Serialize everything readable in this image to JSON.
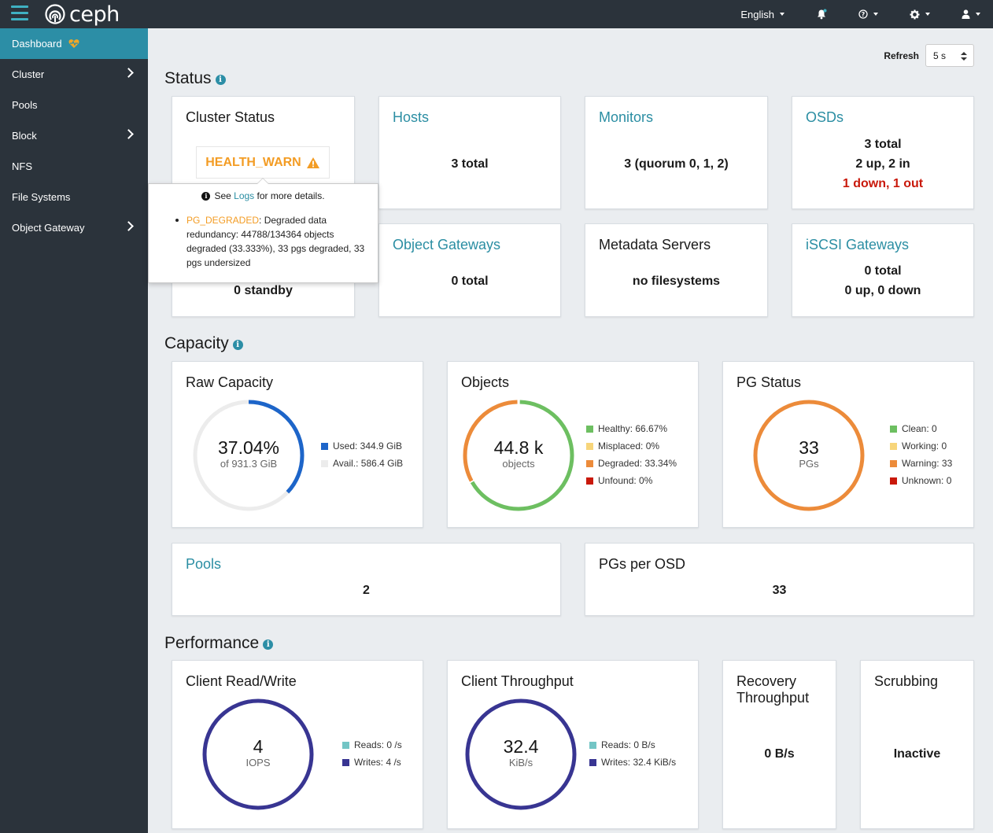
{
  "topbar": {
    "logo_text": "ceph",
    "language": "English"
  },
  "sidebar": {
    "items": [
      {
        "label": "Dashboard",
        "active": true
      },
      {
        "label": "Cluster",
        "has_submenu": true
      },
      {
        "label": "Pools"
      },
      {
        "label": "Block",
        "has_submenu": true
      },
      {
        "label": "NFS"
      },
      {
        "label": "File Systems"
      },
      {
        "label": "Object Gateway",
        "has_submenu": true
      }
    ]
  },
  "refresh": {
    "label": "Refresh",
    "value": "5 s"
  },
  "sections": {
    "status": "Status",
    "capacity": "Capacity",
    "performance": "Performance"
  },
  "status": {
    "cluster_status": {
      "title": "Cluster Status",
      "health": "HEALTH_WARN",
      "hidden_value": "0 standby"
    },
    "hosts": {
      "title": "Hosts",
      "value": "3 total"
    },
    "monitors": {
      "title": "Monitors",
      "value": "3 (quorum 0, 1, 2)"
    },
    "osds": {
      "title": "OSDs",
      "line1": "3 total",
      "line2": "2 up, 2 in",
      "line3": "1 down, 1 out"
    },
    "object_gateways": {
      "title": "Object Gateways",
      "value": "0 total"
    },
    "metadata_servers": {
      "title": "Metadata Servers",
      "value": "no filesystems"
    },
    "iscsi_gateways": {
      "title": "iSCSI Gateways",
      "line1": "0 total",
      "line2": "0 up, 0 down"
    }
  },
  "popover": {
    "see": "See",
    "logs_link": "Logs",
    "more": "for more details.",
    "check_name": "PG_DEGRADED",
    "check_text": ": Degraded data redundancy: 44788/134364 objects degraded (33.333%), 33 pgs degraded, 33 pgs undersized"
  },
  "capacity": {
    "raw": {
      "title": "Raw Capacity",
      "big": "37.04%",
      "small": "of 931.3 GiB",
      "used_fraction": 0.3704,
      "legend": [
        {
          "label": "Used: 344.9 GiB",
          "color": "#1d65c9"
        },
        {
          "label": "Avail.: 586.4 GiB",
          "color": "#ececec"
        }
      ]
    },
    "objects": {
      "title": "Objects",
      "big": "44.8 k",
      "small": "objects",
      "healthy_fraction": 0.6667,
      "degraded_fraction": 0.3334,
      "legend": [
        {
          "label": "Healthy: 66.67%",
          "color": "#6dbf61"
        },
        {
          "label": "Misplaced: 0%",
          "color": "#f7d57a"
        },
        {
          "label": "Degraded: 33.34%",
          "color": "#ec8b3a"
        },
        {
          "label": "Unfound: 0%",
          "color": "#c9190b"
        }
      ]
    },
    "pg_status": {
      "title": "PG Status",
      "big": "33",
      "small": "PGs",
      "legend": [
        {
          "label": "Clean: 0",
          "color": "#6dbf61"
        },
        {
          "label": "Working: 0",
          "color": "#f7d57a"
        },
        {
          "label": "Warning: 33",
          "color": "#ec8b3a"
        },
        {
          "label": "Unknown: 0",
          "color": "#c9190b"
        }
      ]
    },
    "pools": {
      "title": "Pools",
      "value": "2"
    },
    "pgs_per_osd": {
      "title": "PGs per OSD",
      "value": "33"
    }
  },
  "performance": {
    "client_rw": {
      "title": "Client Read/Write",
      "big": "4",
      "small": "IOPS",
      "legend": [
        {
          "label": "Reads: 0 /s",
          "color": "#73c5c5"
        },
        {
          "label": "Writes: 4 /s",
          "color": "#383592"
        }
      ]
    },
    "client_throughput": {
      "title": "Client Throughput",
      "big": "32.4",
      "small": "KiB/s",
      "legend": [
        {
          "label": "Reads: 0 B/s",
          "color": "#73c5c5"
        },
        {
          "label": "Writes: 32.4 KiB/s",
          "color": "#383592"
        }
      ]
    },
    "recovery": {
      "title_line1": "Recovery",
      "title_line2": "Throughput",
      "value": "0 B/s"
    },
    "scrubbing": {
      "title": "Scrubbing",
      "value": "Inactive"
    }
  }
}
